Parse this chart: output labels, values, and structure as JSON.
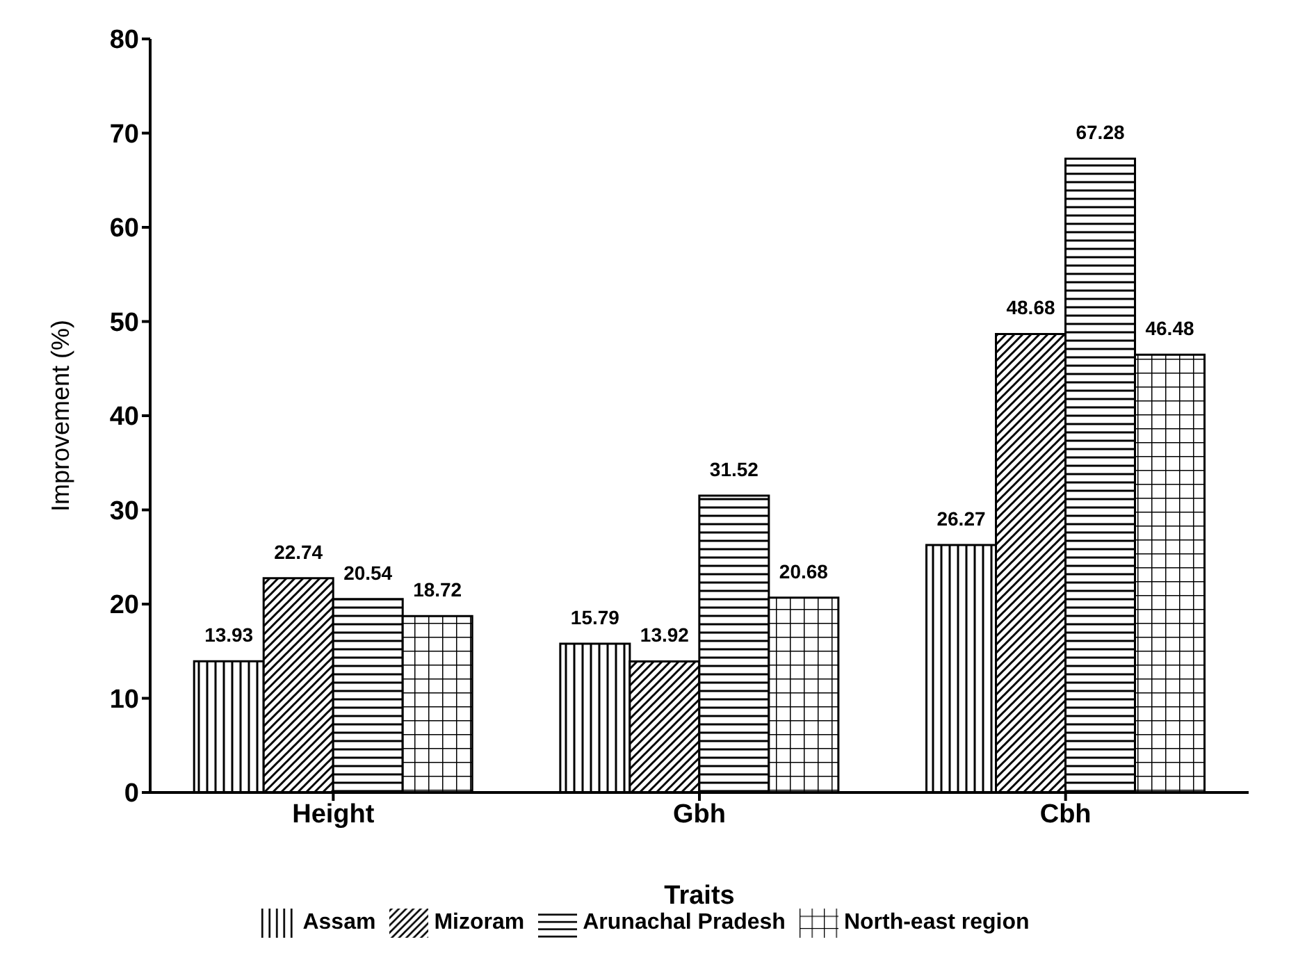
{
  "chart_data": {
    "type": "bar",
    "xlabel": "Traits",
    "ylabel": "Improvement (%)",
    "categories": [
      "Height",
      "Gbh",
      "Cbh"
    ],
    "series": [
      {
        "name": "Assam",
        "color": "#000000",
        "values": [
          13.93,
          15.79,
          26.27
        ]
      },
      {
        "name": "Mizoram",
        "color": "#000000",
        "values": [
          22.74,
          13.92,
          48.68
        ]
      },
      {
        "name": "Arunachal Pradesh",
        "color": "#000000",
        "values": [
          20.54,
          31.52,
          67.28
        ]
      },
      {
        "name": "North-east region",
        "color": "#000000",
        "values": [
          18.72,
          20.68,
          46.48
        ]
      }
    ],
    "ylim": [
      0,
      80
    ],
    "yticks": [
      0,
      10,
      20,
      30,
      40,
      50,
      60,
      70,
      80
    ],
    "data_labels": true,
    "legend": "bottom",
    "grid": false
  }
}
